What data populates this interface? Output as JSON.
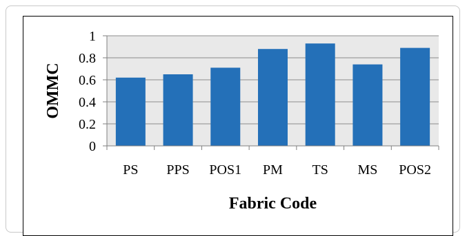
{
  "chart_data": {
    "type": "bar",
    "title": "",
    "xlabel": "Fabric Code",
    "ylabel": "OMMC",
    "categories": [
      "PS",
      "PPS",
      "POS1",
      "PM",
      "TS",
      "MS",
      "POS2"
    ],
    "values": [
      0.62,
      0.65,
      0.71,
      0.88,
      0.93,
      0.74,
      0.89
    ],
    "ylim": [
      0,
      1
    ],
    "yticks": [
      0,
      0.2,
      0.4,
      0.6,
      0.8,
      1
    ],
    "ytick_labels": [
      "0",
      "0.2",
      "0.4",
      "0.6",
      "0.8",
      "1"
    ],
    "grid": true,
    "legend": "none",
    "colors": {
      "bar": "#2470b8",
      "plot_bg": "#e9e9e9",
      "grid": "#8c8c8c"
    }
  }
}
